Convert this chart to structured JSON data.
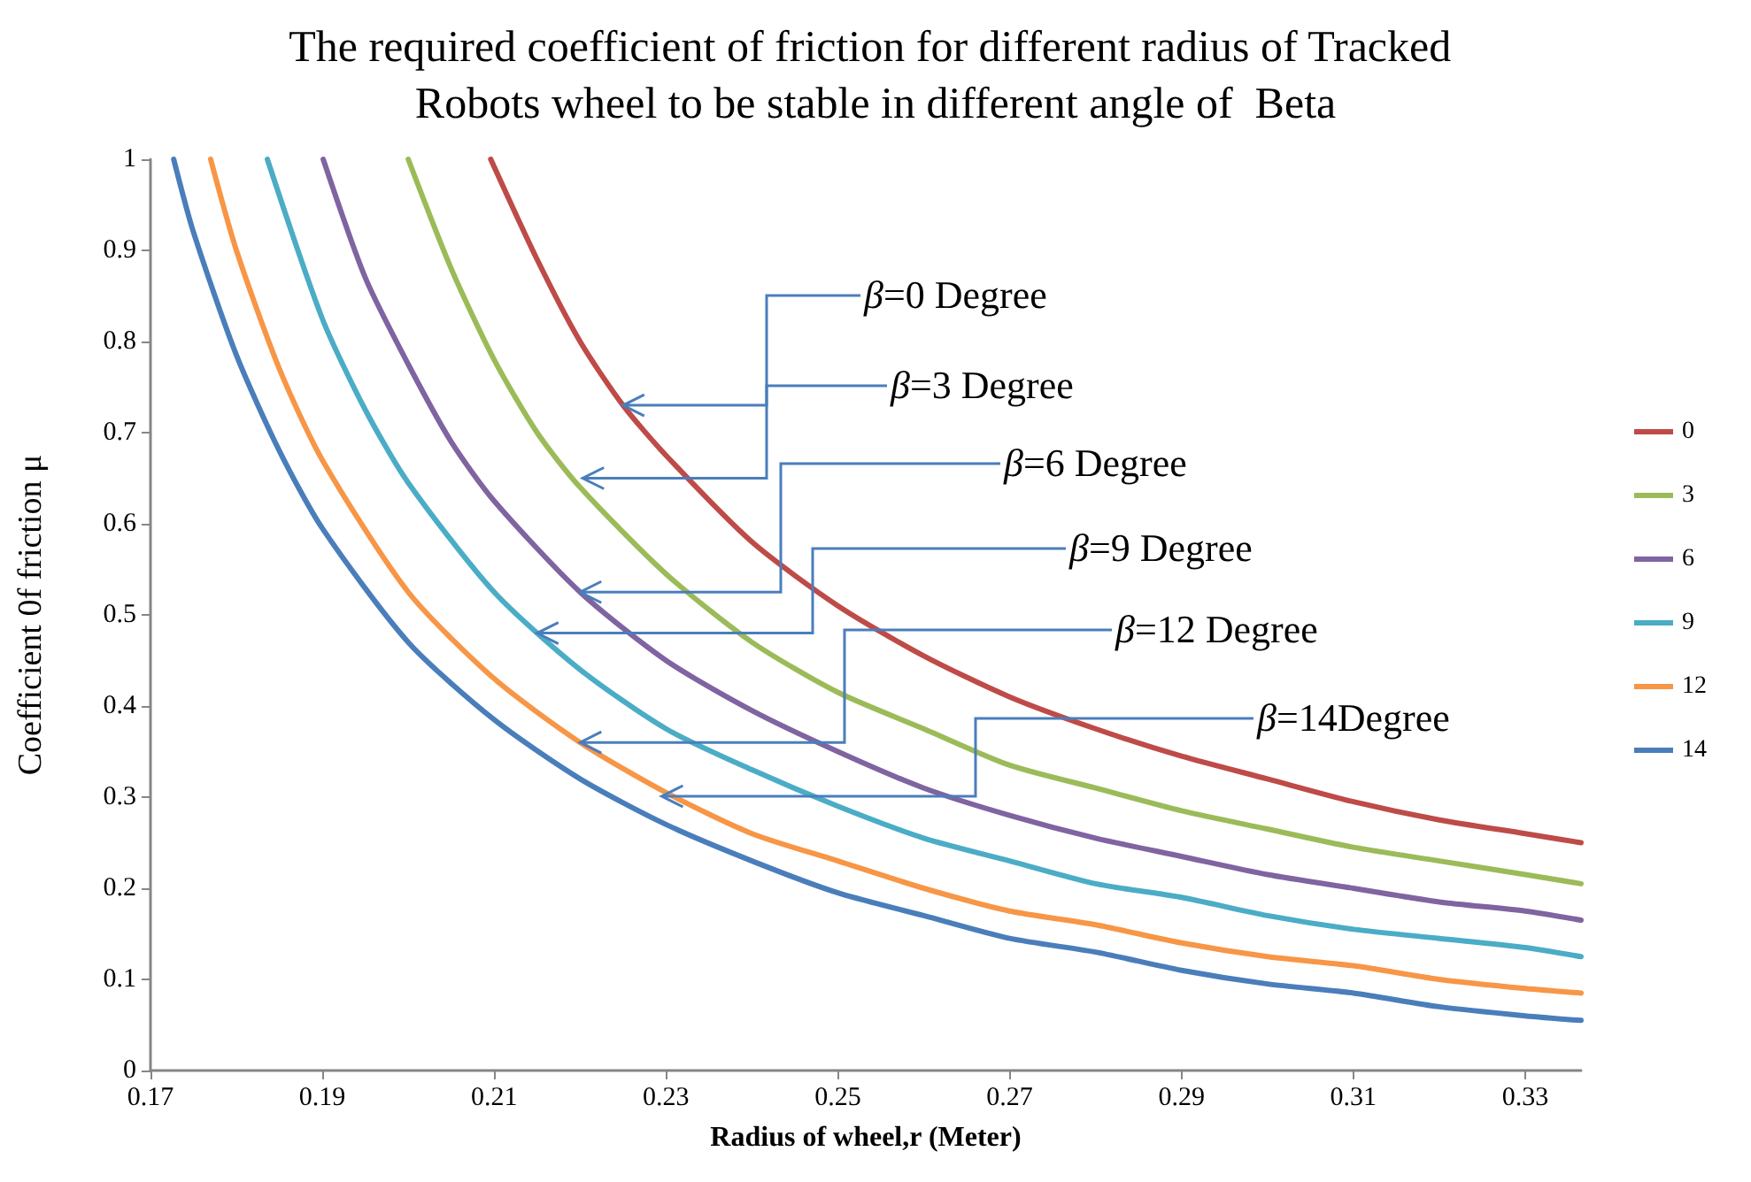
{
  "chart_data": {
    "type": "line",
    "title": "The required coefficient of friction for different radius of Tracked Robots wheel to be stable in different angle of  Beta",
    "xlabel": "Radius of wheel,r (Meter)",
    "ylabel": "Coefficient 0f friction μ",
    "xlim": [
      0.17,
      0.3365
    ],
    "xticks": [
      0.17,
      0.19,
      0.21,
      0.23,
      0.25,
      0.27,
      0.29,
      0.31,
      0.33
    ],
    "ylim": [
      0,
      1
    ],
    "yticks": [
      0,
      0.1,
      0.2,
      0.3,
      0.4,
      0.5,
      0.6,
      0.7,
      0.8,
      0.9,
      1
    ],
    "grid": false,
    "legend": "right",
    "marker": "none",
    "line_style": "solid",
    "series": [
      {
        "name": "0",
        "color": "#be4b48",
        "x": [
          0.2096,
          0.215,
          0.22,
          0.225,
          0.23,
          0.24,
          0.25,
          0.26,
          0.27,
          0.28,
          0.29,
          0.3,
          0.31,
          0.32,
          0.33,
          0.3365
        ],
        "values": [
          1.0,
          0.89,
          0.8,
          0.73,
          0.675,
          0.58,
          0.51,
          0.455,
          0.41,
          0.375,
          0.345,
          0.32,
          0.295,
          0.275,
          0.26,
          0.25
        ]
      },
      {
        "name": "3",
        "color": "#9bbb59",
        "x": [
          0.2,
          0.205,
          0.21,
          0.215,
          0.22,
          0.23,
          0.24,
          0.25,
          0.26,
          0.27,
          0.28,
          0.29,
          0.3,
          0.31,
          0.32,
          0.33,
          0.3365
        ],
        "values": [
          1.0,
          0.88,
          0.78,
          0.7,
          0.64,
          0.545,
          0.47,
          0.415,
          0.375,
          0.335,
          0.31,
          0.285,
          0.265,
          0.245,
          0.23,
          0.215,
          0.205
        ]
      },
      {
        "name": "6",
        "color": "#7f64a1",
        "x": [
          0.1901,
          0.195,
          0.2,
          0.205,
          0.21,
          0.22,
          0.23,
          0.24,
          0.25,
          0.26,
          0.27,
          0.28,
          0.29,
          0.3,
          0.31,
          0.32,
          0.33,
          0.3365
        ],
        "values": [
          1.0,
          0.87,
          0.775,
          0.69,
          0.625,
          0.525,
          0.45,
          0.395,
          0.35,
          0.31,
          0.28,
          0.255,
          0.235,
          0.215,
          0.2,
          0.185,
          0.175,
          0.165
        ]
      },
      {
        "name": "9",
        "color": "#4bacc6",
        "x": [
          0.1836,
          0.19,
          0.195,
          0.2,
          0.21,
          0.22,
          0.23,
          0.24,
          0.25,
          0.26,
          0.27,
          0.28,
          0.29,
          0.3,
          0.31,
          0.32,
          0.33,
          0.3365
        ],
        "values": [
          1.0,
          0.825,
          0.725,
          0.645,
          0.525,
          0.44,
          0.375,
          0.33,
          0.29,
          0.255,
          0.23,
          0.205,
          0.19,
          0.17,
          0.155,
          0.145,
          0.135,
          0.125
        ]
      },
      {
        "name": "12",
        "color": "#f79646",
        "x": [
          0.177,
          0.18,
          0.185,
          0.19,
          0.2,
          0.21,
          0.22,
          0.23,
          0.24,
          0.25,
          0.26,
          0.27,
          0.28,
          0.29,
          0.3,
          0.31,
          0.32,
          0.33,
          0.3365
        ],
        "values": [
          1.0,
          0.9,
          0.77,
          0.67,
          0.525,
          0.43,
          0.36,
          0.305,
          0.26,
          0.23,
          0.2,
          0.175,
          0.16,
          0.14,
          0.125,
          0.115,
          0.1,
          0.09,
          0.085
        ]
      },
      {
        "name": "14",
        "color": "#4a7ebb",
        "x": [
          0.1727,
          0.175,
          0.18,
          0.185,
          0.19,
          0.2,
          0.21,
          0.22,
          0.23,
          0.24,
          0.25,
          0.26,
          0.27,
          0.28,
          0.29,
          0.3,
          0.31,
          0.32,
          0.33,
          0.3365
        ],
        "values": [
          1.0,
          0.92,
          0.785,
          0.68,
          0.595,
          0.47,
          0.385,
          0.32,
          0.27,
          0.23,
          0.195,
          0.17,
          0.145,
          0.13,
          0.11,
          0.095,
          0.085,
          0.07,
          0.06,
          0.055
        ]
      }
    ],
    "annotations": [
      {
        "text": "β=0 Degree",
        "x": 0.225,
        "y": 0.73
      },
      {
        "text": "β=3 Degree",
        "x": 0.2203,
        "y": 0.65
      },
      {
        "text": "β=6 Degree",
        "x": 0.22,
        "y": 0.525
      },
      {
        "text": "β=9 Degree",
        "x": 0.215,
        "y": 0.48
      },
      {
        "text": "β=12 Degree",
        "x": 0.22,
        "y": 0.36
      },
      {
        "text": "β=14Degree",
        "x": 0.2295,
        "y": 0.301
      }
    ]
  }
}
